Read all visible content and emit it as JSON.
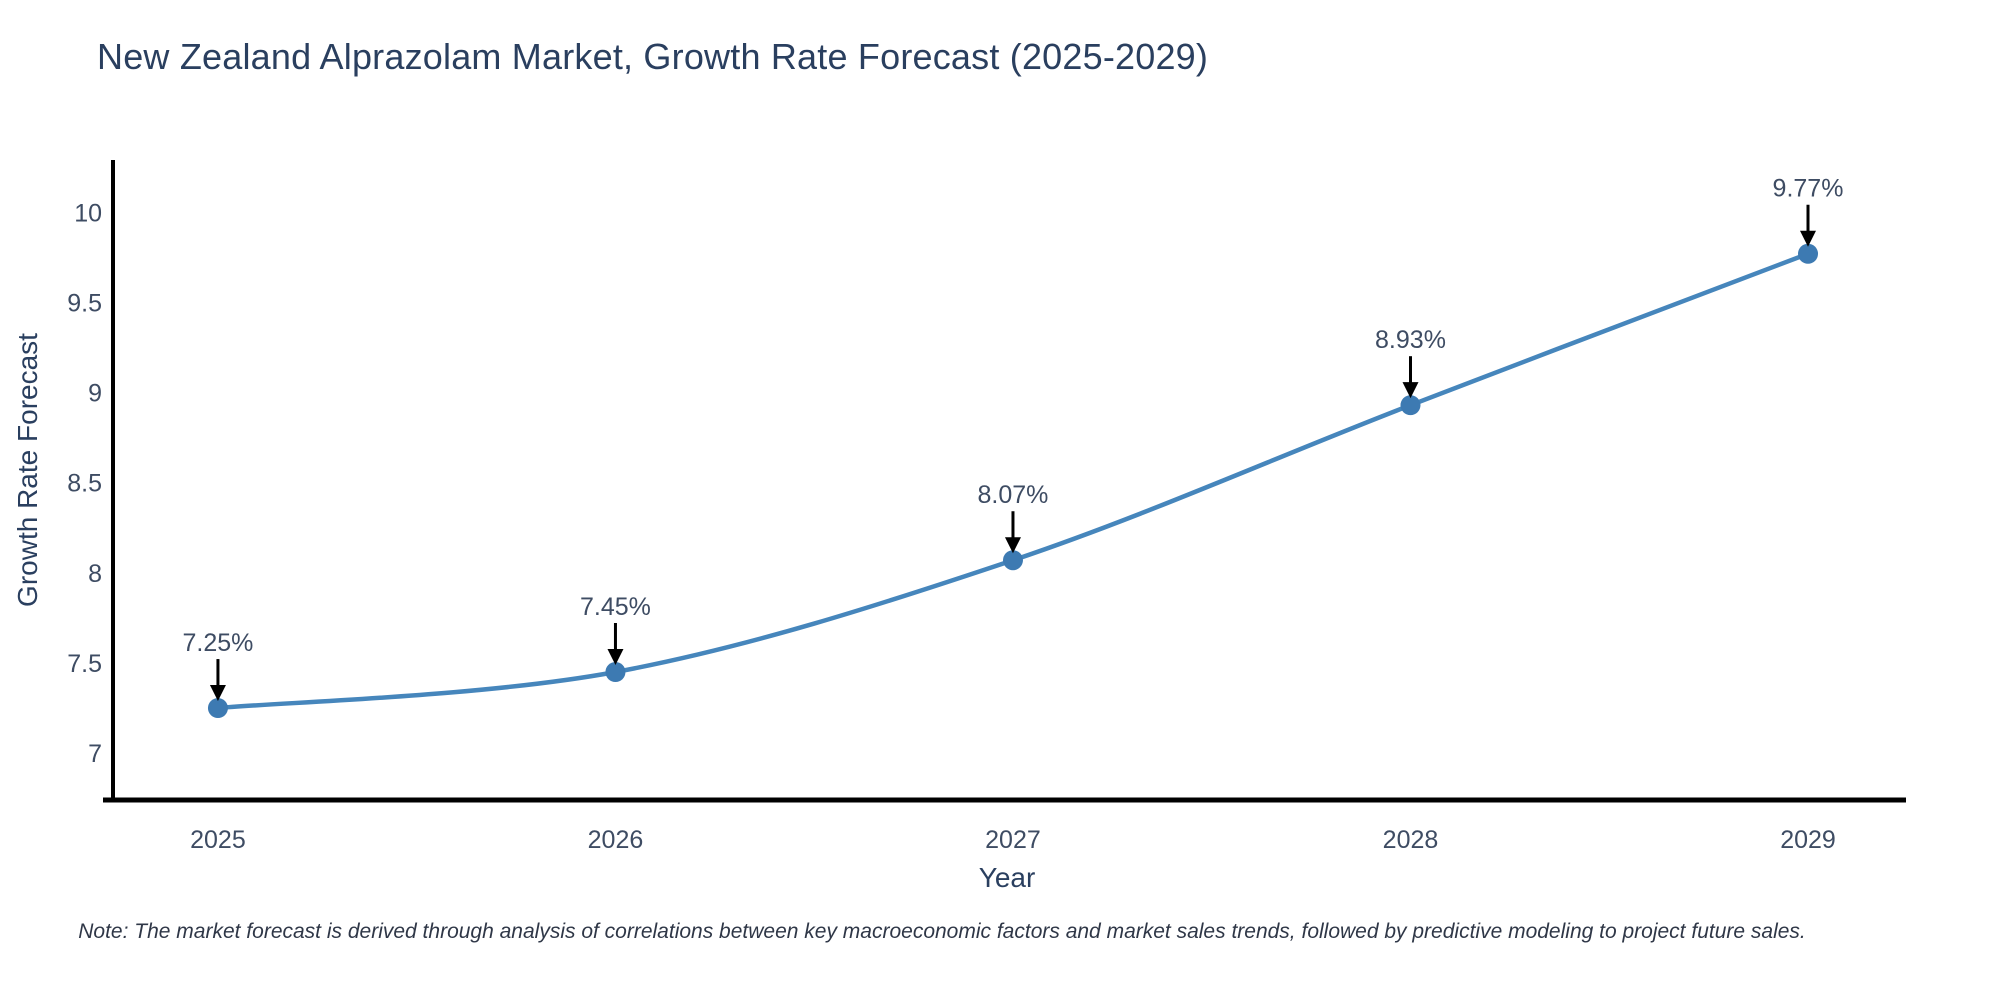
{
  "page": {
    "background": "#ffffff"
  },
  "chart_data": {
    "type": "line",
    "line_shape": "spline",
    "title": "New Zealand Alprazolam Market, Growth Rate Forecast (2025-2029)",
    "xlabel": "Year",
    "ylabel": "Growth Rate Forecast",
    "x": [
      2025,
      2026,
      2027,
      2028,
      2029
    ],
    "x_tick_labels": [
      "2025",
      "2026",
      "2027",
      "2028",
      "2029"
    ],
    "series": [
      {
        "name": "Growth Rate Forecast",
        "values": [
          7.25,
          7.45,
          8.07,
          8.93,
          9.77
        ]
      }
    ],
    "point_labels": [
      "7.25%",
      "7.45%",
      "8.07%",
      "8.93%",
      "9.77%"
    ],
    "yticks": [
      7,
      7.5,
      8,
      8.5,
      9,
      9.5,
      10
    ],
    "ytick_labels": [
      "7",
      "7.5",
      "8",
      "8.5",
      "9",
      "9.5",
      "10"
    ],
    "ylim": [
      6.74,
      10.29
    ],
    "xlim": [
      2024.736,
      2029.244
    ],
    "grid": false,
    "legend": "none",
    "colors": {
      "line": "#4686BC",
      "marker": "#3D7AB2",
      "axis": "#000000",
      "title_text": "#2a3f5f",
      "tick_text": "#3e4c63",
      "annotation_arrow": "#000000",
      "note_text": "#2f3747"
    },
    "note": "Note: The market forecast is derived through analysis of correlations between key macroeconomic factors and market sales trends, followed by predictive modeling to project future sales."
  }
}
